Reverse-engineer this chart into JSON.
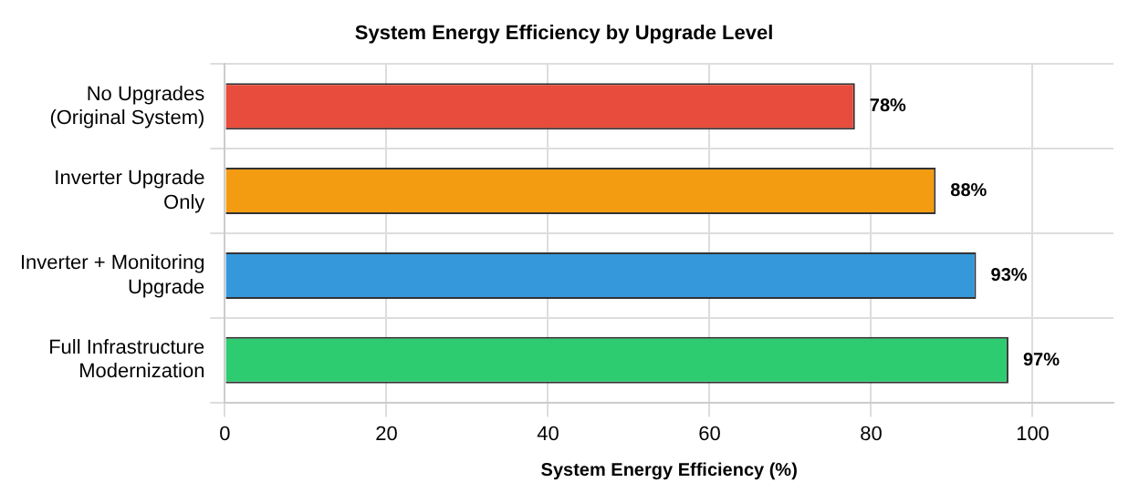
{
  "chart_data": {
    "type": "bar",
    "orientation": "horizontal",
    "title": "System Energy Efficiency by Upgrade Level",
    "xlabel": "System Energy Efficiency (%)",
    "categories": [
      "No Upgrades\n(Original System)",
      "Inverter Upgrade\nOnly",
      "Inverter + Monitoring\nUpgrade",
      "Full Infrastructure\nModernization"
    ],
    "values": [
      78,
      88,
      93,
      97
    ],
    "colors": [
      "#e74c3c",
      "#f39c12",
      "#3498db",
      "#2ecc71"
    ],
    "value_labels": [
      "78%",
      "88%",
      "93%",
      "97%"
    ],
    "xlim": [
      0,
      110
    ],
    "xticks": [
      0,
      20,
      40,
      60,
      80,
      100
    ],
    "grid": true,
    "legend": false
  }
}
